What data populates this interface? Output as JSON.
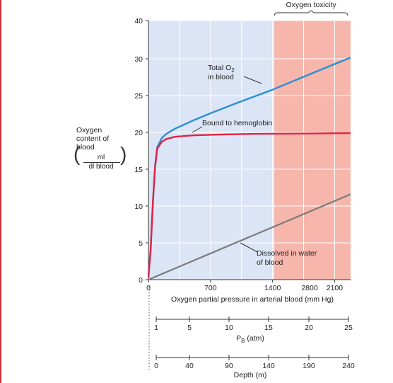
{
  "chart_data": {
    "type": "line",
    "y_axis": {
      "label_lines": [
        "Oxygen",
        "content of",
        "blood"
      ],
      "unit_numerator": "ml",
      "unit_denominator": "dl blood",
      "ylim": [
        0,
        40
      ],
      "ticks": [
        "0",
        "5",
        "10",
        "15",
        "20",
        "25",
        "30",
        "40"
      ]
    },
    "x_axis": {
      "label": "Oxygen partial pressure in arterial blood (mm Hg)",
      "xlim": [
        0,
        2280
      ],
      "ticks": [
        "0",
        "700",
        "1400",
        "2100",
        "2800"
      ]
    },
    "pb_axis": {
      "label": "P",
      "label_sub": "B",
      "label_unit": " (atm)",
      "ticks": [
        "1",
        "5",
        "10",
        "15",
        "20",
        "25"
      ]
    },
    "depth_axis": {
      "label": "Depth (m)",
      "ticks": [
        "0",
        "40",
        "90",
        "140",
        "190",
        "240"
      ]
    },
    "regions": [
      {
        "name": "normal",
        "x_range": [
          0,
          1420
        ],
        "color": "#dce5f6"
      },
      {
        "name": "toxicity",
        "x_range": [
          1420,
          2280
        ],
        "color": "#f6b6ac",
        "label": "Oxygen toxicity"
      }
    ],
    "series": [
      {
        "name": "Total O",
        "name_sub": "2",
        "name_line2": "in blood",
        "color": "#2a8fd6",
        "x": [
          0,
          25,
          50,
          75,
          100,
          150,
          200,
          300,
          500,
          700,
          1000,
          1400,
          1800,
          2280
        ],
        "y": [
          0.3,
          4,
          10.5,
          15.5,
          18,
          19.2,
          19.8,
          20.5,
          21.6,
          22.6,
          24,
          25.8,
          27.8,
          30.3
        ]
      },
      {
        "name": "Bound to hemoglobin",
        "color": "#e02346",
        "x": [
          0,
          25,
          50,
          75,
          100,
          150,
          200,
          300,
          500,
          800,
          1200,
          1800,
          2280
        ],
        "y": [
          0.3,
          4,
          10.5,
          15.3,
          17.8,
          18.7,
          19.1,
          19.4,
          19.6,
          19.7,
          19.8,
          19.85,
          19.9
        ]
      },
      {
        "name": "Dissolved in water",
        "name_line2": "of blood",
        "color": "#7a7a7a",
        "x": [
          0,
          2280
        ],
        "y": [
          0,
          11.6
        ]
      }
    ],
    "colors": {
      "grid": "#ffffff",
      "axis": "#333333",
      "frame": "#c8323a"
    }
  }
}
